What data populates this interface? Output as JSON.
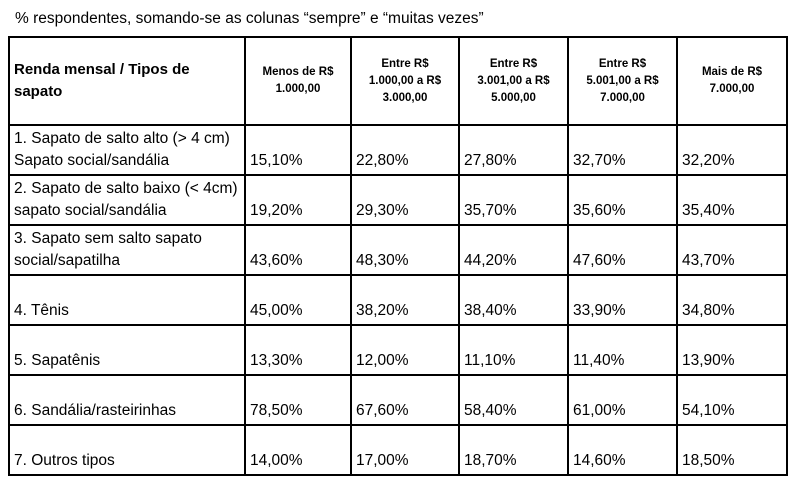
{
  "caption": "%  respondentes, somando-se as colunas “sempre” e “muitas vezes”",
  "table": {
    "headers": [
      "Renda mensal / Tipos de sapato",
      "Menos de R$ 1.000,00",
      "Entre R$ 1.000,00 a R$ 3.000,00",
      "Entre R$ 3.001,00 a R$ 5.000,00",
      "Entre R$ 5.001,00 a R$ 7.000,00",
      "Mais de R$ 7.000,00"
    ],
    "rows": [
      {
        "label": "1. Sapato de salto alto (> 4 cm) Sapato social/sandália",
        "values": [
          "15,10%",
          "22,80%",
          "27,80%",
          "32,70%",
          "32,20%"
        ]
      },
      {
        "label": "2. Sapato de salto baixo (< 4cm) sapato social/sandália",
        "values": [
          "19,20%",
          "29,30%",
          "35,70%",
          "35,60%",
          "35,40%"
        ]
      },
      {
        "label": "3. Sapato sem salto  sapato social/sapatilha",
        "values": [
          "43,60%",
          "48,30%",
          "44,20%",
          "47,60%",
          "43,70%"
        ]
      },
      {
        "label": "4. Tênis",
        "values": [
          "45,00%",
          "38,20%",
          "38,40%",
          "33,90%",
          "34,80%"
        ]
      },
      {
        "label": "5. Sapatênis",
        "values": [
          "13,30%",
          "12,00%",
          "11,10%",
          "11,40%",
          "13,90%"
        ]
      },
      {
        "label": "6. Sandália/rasteirinhas",
        "values": [
          "78,50%",
          "67,60%",
          "58,40%",
          "61,00%",
          "54,10%"
        ]
      },
      {
        "label": "7. Outros tipos",
        "values": [
          "14,00%",
          "17,00%",
          "18,70%",
          "14,60%",
          "18,50%"
        ]
      }
    ]
  }
}
